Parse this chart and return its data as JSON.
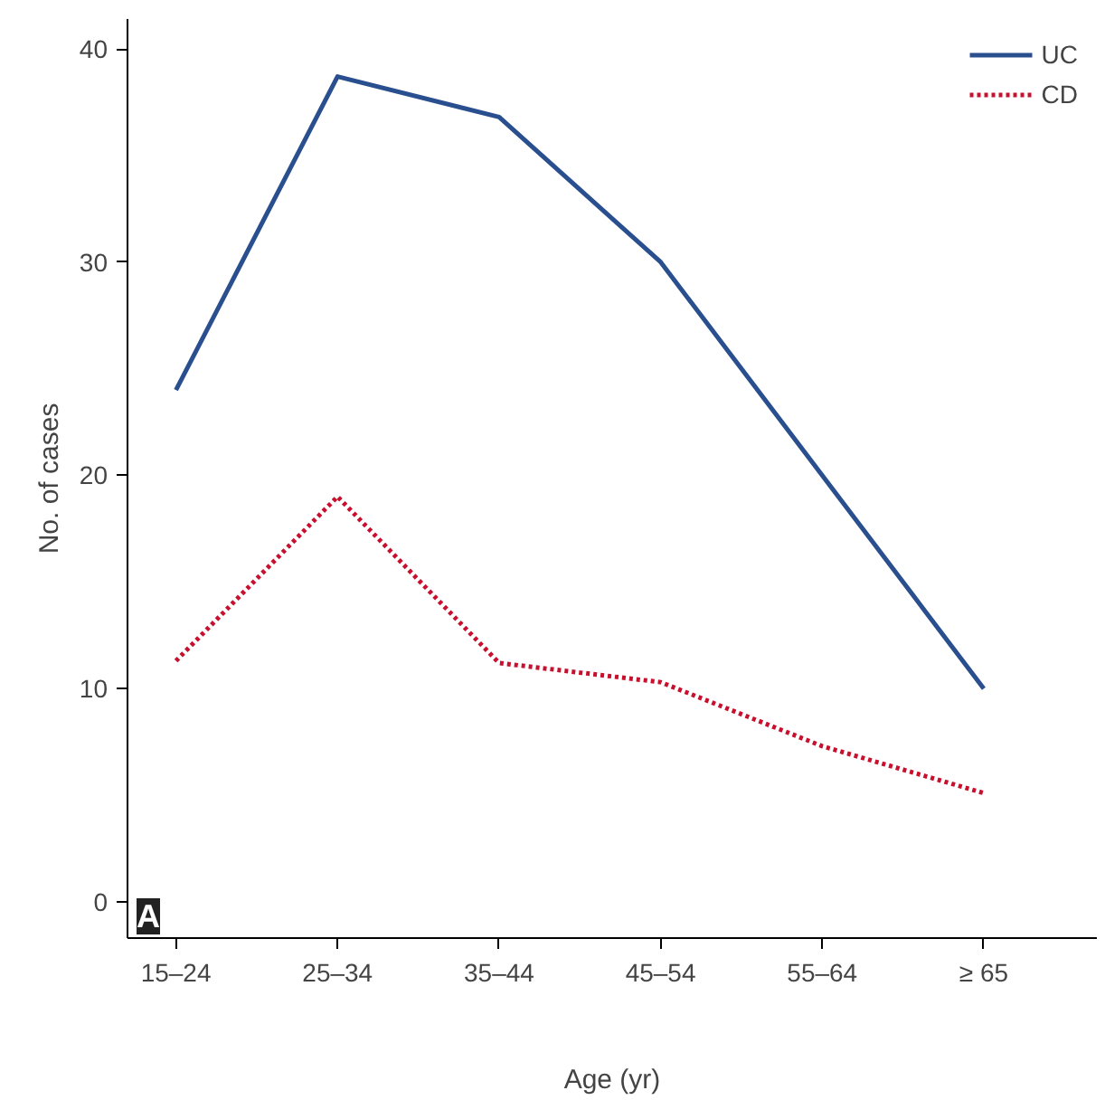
{
  "chart_data": {
    "type": "line",
    "xlabel": "Age (yr)",
    "ylabel": "No. of cases",
    "categories": [
      "15–24",
      "25–34",
      "35–44",
      "45–54",
      "55–64",
      "≥ 65"
    ],
    "series": [
      {
        "name": "UC",
        "color": "#2a4f8f",
        "values": [
          24,
          38.7,
          36.8,
          30,
          20,
          10
        ],
        "line_style": "solid"
      },
      {
        "name": "CD",
        "color": "#c8102e",
        "values": [
          11.3,
          19,
          11.2,
          10.3,
          7.3,
          5.1
        ],
        "line_style": "dotted"
      }
    ],
    "ylim": [
      -1.7,
      41.4
    ],
    "yticks": [
      0,
      10,
      20,
      30,
      40
    ],
    "legend": "top right",
    "grid": false,
    "annotations": [
      "A"
    ]
  }
}
